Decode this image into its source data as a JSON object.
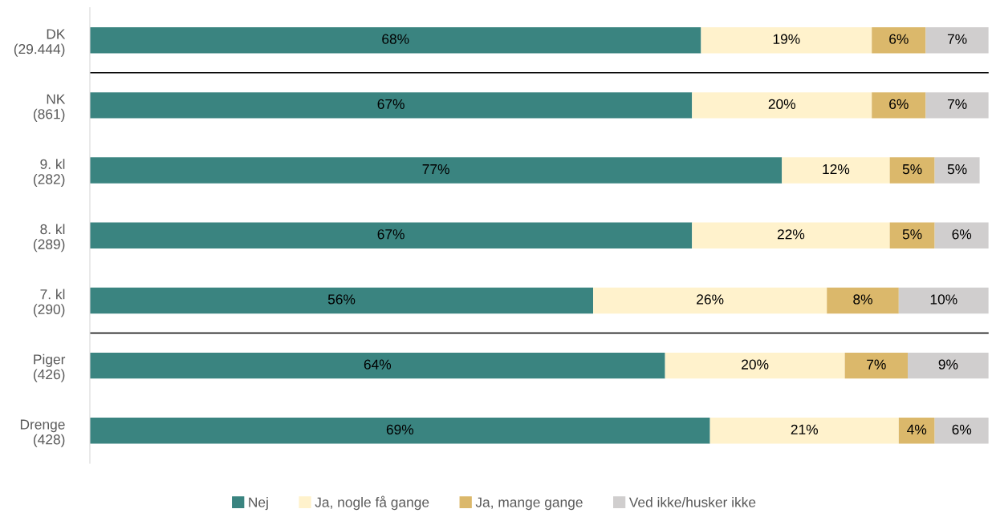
{
  "chart_data": {
    "type": "bar",
    "orientation": "horizontal",
    "stacked": true,
    "legend": "bottom",
    "categories": [
      "DK\n(29.444)",
      "NK\n(861)",
      "9. kl\n(282)",
      "8. kl\n(289)",
      "7. kl\n(290)",
      "Piger\n(426)",
      "Drenge\n(428)"
    ],
    "series": [
      {
        "name": "Nej",
        "color": "#3a8480",
        "values": [
          68,
          67,
          77,
          67,
          56,
          64,
          69
        ],
        "value_labels": [
          "68%",
          "67%",
          "77%",
          "67%",
          "56%",
          "64%",
          "69%"
        ]
      },
      {
        "name": "Ja, nogle få gange",
        "color": "#fff2cc",
        "values": [
          19,
          20,
          12,
          22,
          26,
          20,
          21
        ],
        "value_labels": [
          "19%",
          "20%",
          "12%",
          "22%",
          "26%",
          "20%",
          "21%"
        ]
      },
      {
        "name": "Ja, mange gange",
        "color": "#dbb86b",
        "values": [
          6,
          6,
          5,
          5,
          8,
          7,
          4
        ],
        "value_labels": [
          "6%",
          "6%",
          "5%",
          "5%",
          "8%",
          "7%",
          "4%"
        ]
      },
      {
        "name": "Ved ikke/husker ikke",
        "color": "#d0cece",
        "values": [
          7,
          7,
          5,
          6,
          10,
          9,
          6
        ],
        "value_labels": [
          "7%",
          "7%",
          "5%",
          "6%",
          "10%",
          "9%",
          "6%"
        ]
      }
    ]
  }
}
